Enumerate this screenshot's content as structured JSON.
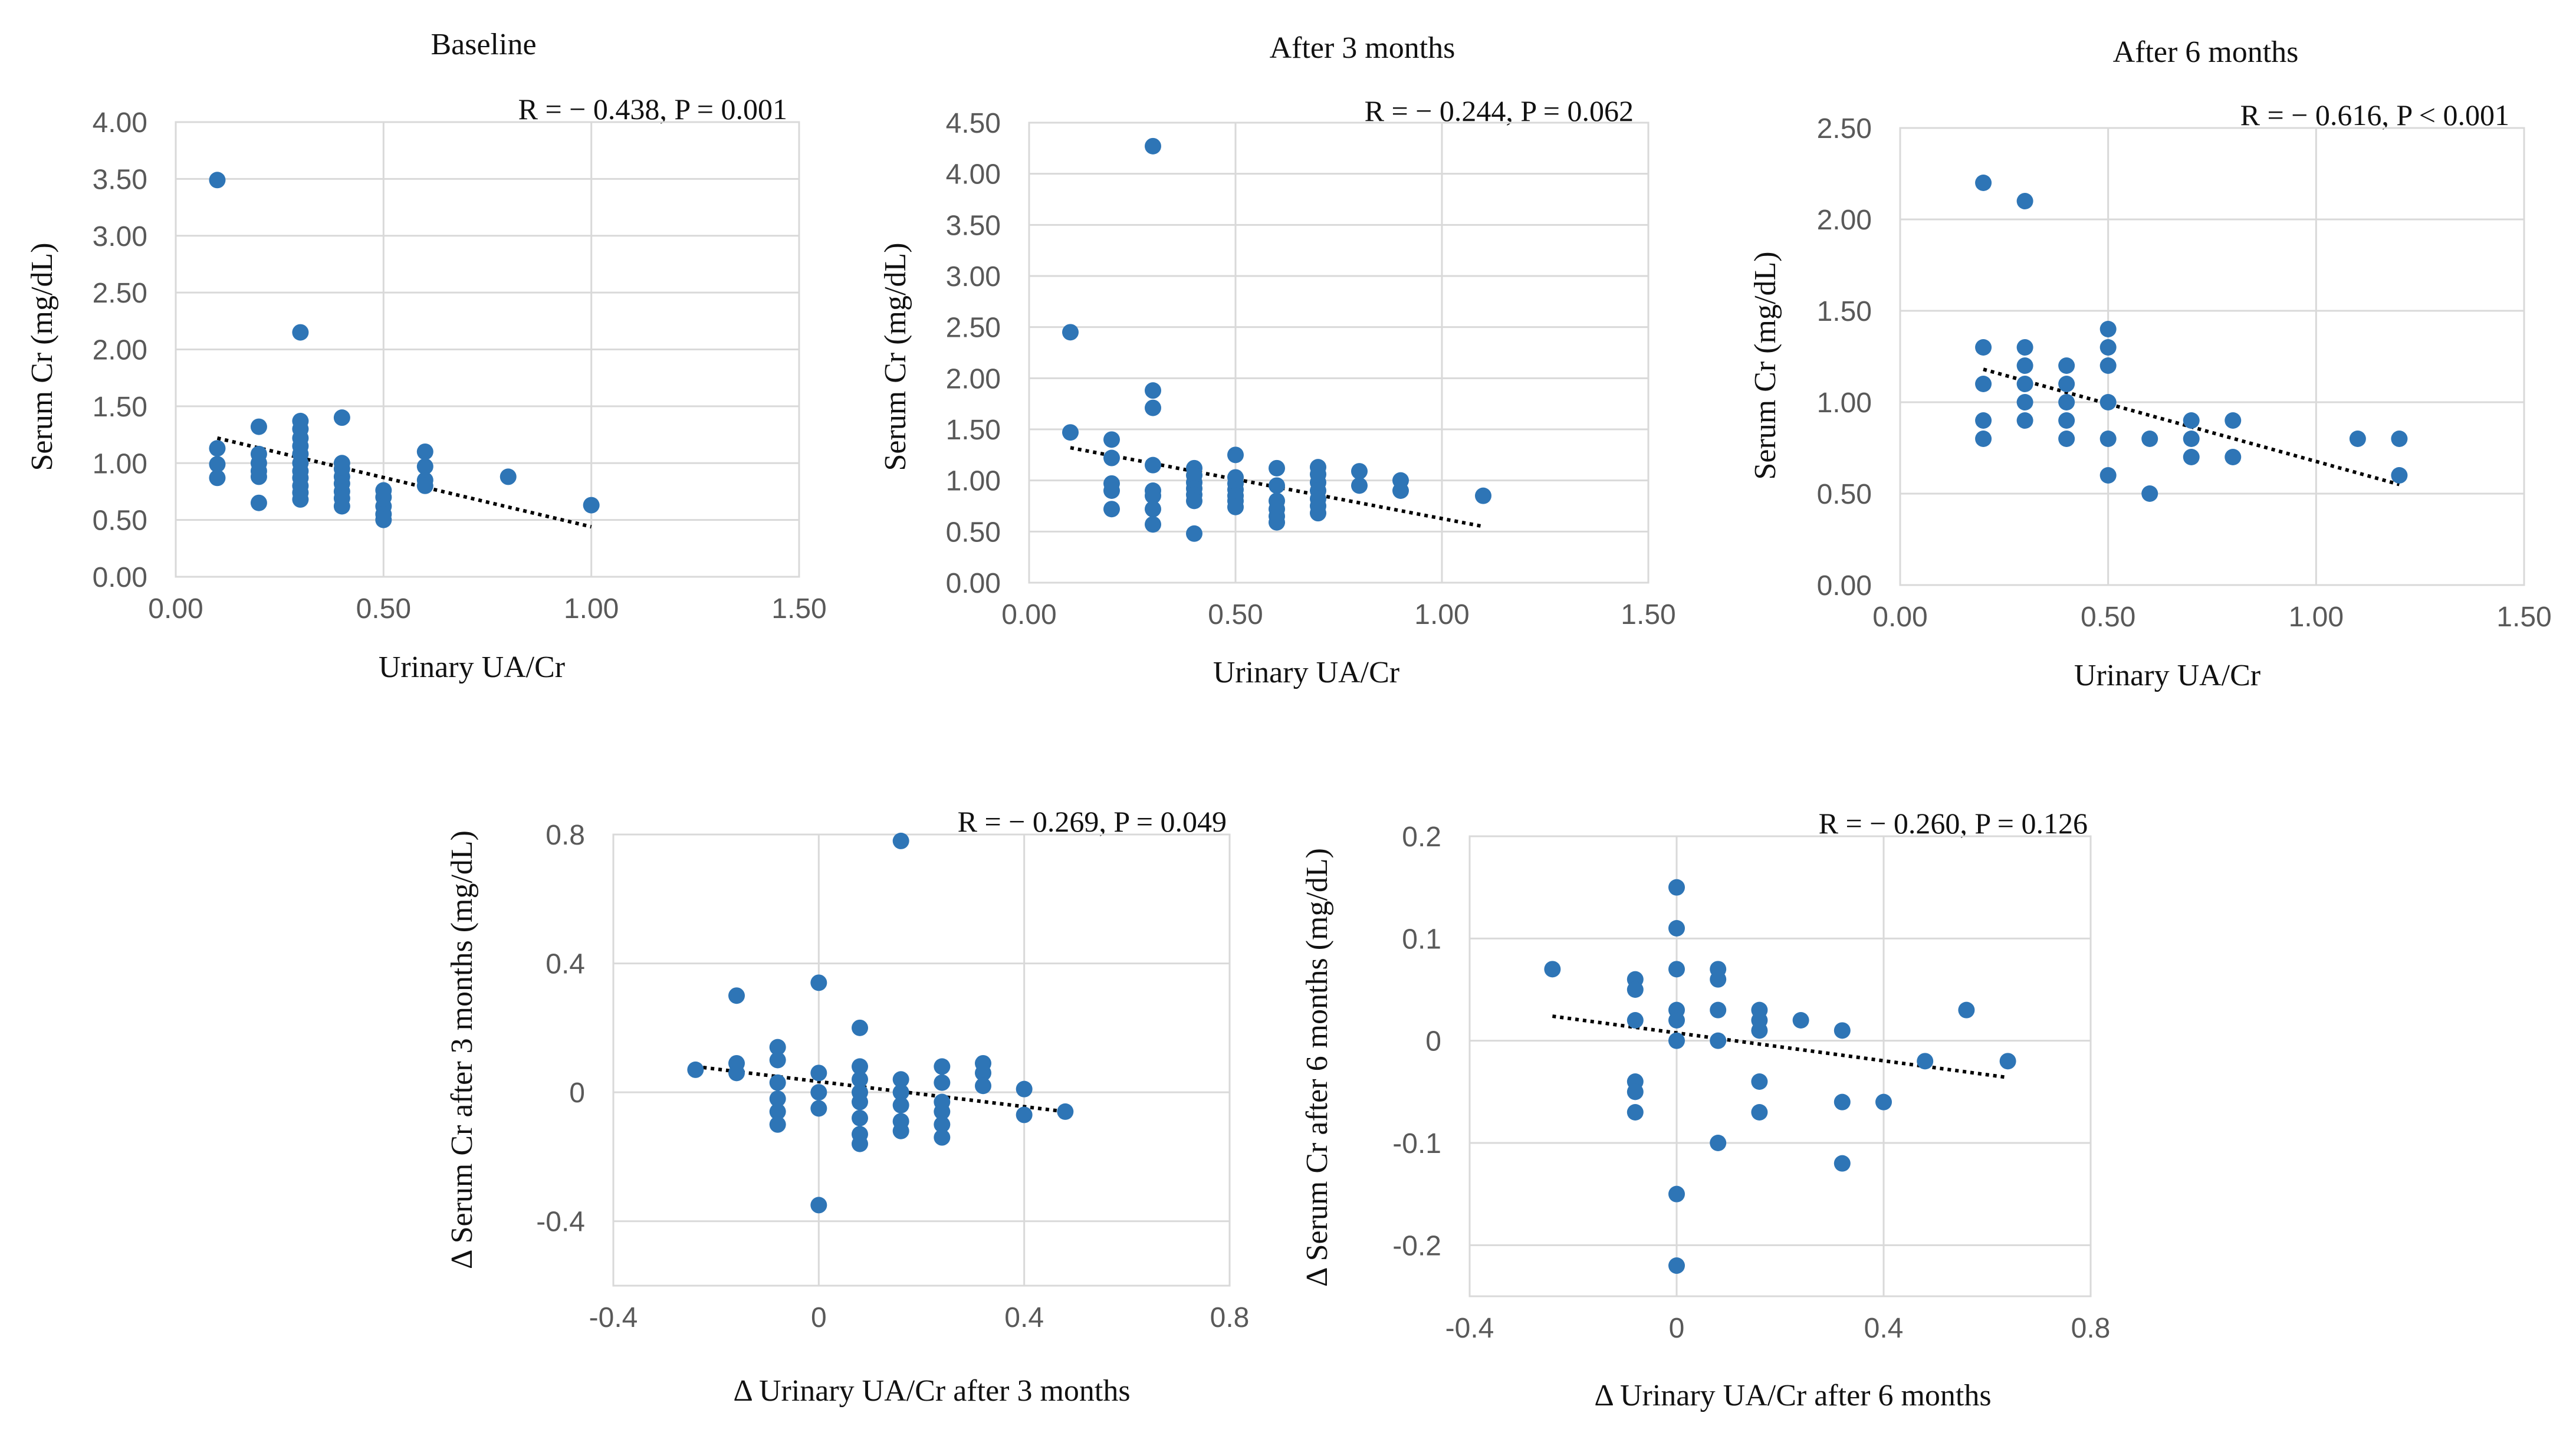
{
  "colors": {
    "point": "#2e75b6",
    "trendline": "#000000",
    "grid": "#d9d9d9",
    "tick_text": "#595959"
  },
  "chart_data": [
    {
      "type": "scatter",
      "title": "Baseline",
      "annotation": "R = − 0.438, P = 0.001",
      "xlabel": "Urinary UA/Cr",
      "ylabel": "Serum Cr (mg/dL)",
      "xlim": [
        0,
        1.5
      ],
      "ylim": [
        0,
        4.0
      ],
      "xticks": [
        0,
        0.5,
        1.0,
        1.5
      ],
      "xtick_labels": [
        "0.00",
        "0.50",
        "1.00",
        "1.50"
      ],
      "yticks": [
        0,
        0.5,
        1.0,
        1.5,
        2.0,
        2.5,
        3.0,
        3.5,
        4.0
      ],
      "ytick_labels": [
        "0.00",
        "0.50",
        "1.00",
        "1.50",
        "2.00",
        "2.50",
        "3.00",
        "3.50",
        "4.00"
      ],
      "grid": "vertical and horizontal",
      "trendline": {
        "x": [
          0.1,
          1.0
        ],
        "y": [
          1.22,
          0.44
        ]
      },
      "points": [
        [
          0.1,
          3.49
        ],
        [
          0.1,
          1.13
        ],
        [
          0.1,
          0.99
        ],
        [
          0.1,
          0.87
        ],
        [
          0.2,
          1.32
        ],
        [
          0.2,
          1.08
        ],
        [
          0.2,
          1.0
        ],
        [
          0.2,
          0.93
        ],
        [
          0.2,
          0.88
        ],
        [
          0.2,
          0.65
        ],
        [
          0.3,
          2.15
        ],
        [
          0.3,
          1.37
        ],
        [
          0.3,
          1.3
        ],
        [
          0.3,
          1.22
        ],
        [
          0.3,
          1.15
        ],
        [
          0.3,
          1.08
        ],
        [
          0.3,
          1.0
        ],
        [
          0.3,
          0.93
        ],
        [
          0.3,
          0.87
        ],
        [
          0.3,
          0.8
        ],
        [
          0.3,
          0.74
        ],
        [
          0.3,
          0.68
        ],
        [
          0.4,
          1.4
        ],
        [
          0.4,
          1.0
        ],
        [
          0.4,
          0.95
        ],
        [
          0.4,
          0.88
        ],
        [
          0.4,
          0.82
        ],
        [
          0.4,
          0.75
        ],
        [
          0.4,
          0.69
        ],
        [
          0.4,
          0.62
        ],
        [
          0.5,
          0.76
        ],
        [
          0.5,
          0.7
        ],
        [
          0.5,
          0.62
        ],
        [
          0.5,
          0.55
        ],
        [
          0.5,
          0.5
        ],
        [
          0.6,
          1.1
        ],
        [
          0.6,
          0.97
        ],
        [
          0.6,
          0.85
        ],
        [
          0.6,
          0.8
        ],
        [
          0.8,
          0.88
        ],
        [
          1.0,
          0.63
        ]
      ]
    },
    {
      "type": "scatter",
      "title": "After 3 months",
      "annotation": "R = − 0.244, P = 0.062",
      "xlabel": "Urinary UA/Cr",
      "ylabel": "Serum Cr (mg/dL)",
      "xlim": [
        0,
        1.5
      ],
      "ylim": [
        0,
        4.5
      ],
      "xticks": [
        0,
        0.5,
        1.0,
        1.5
      ],
      "xtick_labels": [
        "0.00",
        "0.50",
        "1.00",
        "1.50"
      ],
      "yticks": [
        0,
        0.5,
        1.0,
        1.5,
        2.0,
        2.5,
        3.0,
        3.5,
        4.0,
        4.5
      ],
      "ytick_labels": [
        "0.00",
        "0.50",
        "1.00",
        "1.50",
        "2.00",
        "2.50",
        "3.00",
        "3.50",
        "4.00",
        "4.50"
      ],
      "grid": "vertical and horizontal",
      "trendline": {
        "x": [
          0.1,
          1.1
        ],
        "y": [
          1.32,
          0.55
        ]
      },
      "points": [
        [
          0.1,
          2.45
        ],
        [
          0.1,
          1.47
        ],
        [
          0.2,
          1.4
        ],
        [
          0.2,
          1.22
        ],
        [
          0.2,
          0.97
        ],
        [
          0.2,
          0.9
        ],
        [
          0.2,
          0.72
        ],
        [
          0.3,
          4.27
        ],
        [
          0.3,
          1.88
        ],
        [
          0.3,
          1.71
        ],
        [
          0.3,
          1.15
        ],
        [
          0.3,
          0.9
        ],
        [
          0.3,
          0.85
        ],
        [
          0.3,
          0.72
        ],
        [
          0.3,
          0.57
        ],
        [
          0.4,
          1.12
        ],
        [
          0.4,
          1.05
        ],
        [
          0.4,
          0.98
        ],
        [
          0.4,
          0.92
        ],
        [
          0.4,
          0.86
        ],
        [
          0.4,
          0.8
        ],
        [
          0.4,
          0.48
        ],
        [
          0.5,
          1.25
        ],
        [
          0.5,
          1.03
        ],
        [
          0.5,
          0.97
        ],
        [
          0.5,
          0.91
        ],
        [
          0.5,
          0.85
        ],
        [
          0.5,
          0.8
        ],
        [
          0.5,
          0.74
        ],
        [
          0.6,
          1.12
        ],
        [
          0.6,
          0.95
        ],
        [
          0.6,
          0.8
        ],
        [
          0.6,
          0.72
        ],
        [
          0.6,
          0.65
        ],
        [
          0.6,
          0.59
        ],
        [
          0.7,
          1.13
        ],
        [
          0.7,
          1.06
        ],
        [
          0.7,
          0.98
        ],
        [
          0.7,
          0.9
        ],
        [
          0.7,
          0.82
        ],
        [
          0.7,
          0.75
        ],
        [
          0.7,
          0.68
        ],
        [
          0.8,
          1.09
        ],
        [
          0.8,
          0.95
        ],
        [
          0.9,
          1.0
        ],
        [
          0.9,
          0.9
        ],
        [
          1.1,
          0.85
        ]
      ]
    },
    {
      "type": "scatter",
      "title": "After 6 months",
      "annotation": "R = − 0.616, P < 0.001",
      "xlabel": "Urinary UA/Cr",
      "ylabel": "Serum Cr (mg/dL)",
      "xlim": [
        0,
        1.5
      ],
      "ylim": [
        0,
        2.5
      ],
      "xticks": [
        0,
        0.5,
        1.0,
        1.5
      ],
      "xtick_labels": [
        "0.00",
        "0.50",
        "1.00",
        "1.50"
      ],
      "yticks": [
        0,
        0.5,
        1.0,
        1.5,
        2.0,
        2.5
      ],
      "ytick_labels": [
        "0.00",
        "0.50",
        "1.00",
        "1.50",
        "2.00",
        "2.50"
      ],
      "grid": "vertical and horizontal",
      "trendline": {
        "x": [
          0.2,
          1.2
        ],
        "y": [
          1.18,
          0.55
        ]
      },
      "points": [
        [
          0.2,
          2.2
        ],
        [
          0.2,
          1.3
        ],
        [
          0.2,
          1.1
        ],
        [
          0.2,
          0.9
        ],
        [
          0.2,
          0.8
        ],
        [
          0.3,
          2.1
        ],
        [
          0.3,
          1.3
        ],
        [
          0.3,
          1.2
        ],
        [
          0.3,
          1.1
        ],
        [
          0.3,
          1.0
        ],
        [
          0.3,
          0.9
        ],
        [
          0.4,
          1.2
        ],
        [
          0.4,
          1.1
        ],
        [
          0.4,
          1.0
        ],
        [
          0.4,
          0.9
        ],
        [
          0.4,
          0.8
        ],
        [
          0.5,
          1.4
        ],
        [
          0.5,
          1.3
        ],
        [
          0.5,
          1.2
        ],
        [
          0.5,
          1.0
        ],
        [
          0.5,
          0.8
        ],
        [
          0.5,
          0.6
        ],
        [
          0.6,
          0.8
        ],
        [
          0.6,
          0.5
        ],
        [
          0.7,
          0.9
        ],
        [
          0.7,
          0.8
        ],
        [
          0.7,
          0.7
        ],
        [
          0.8,
          0.9
        ],
        [
          0.8,
          0.7
        ],
        [
          1.1,
          0.8
        ],
        [
          1.2,
          0.8
        ],
        [
          1.2,
          0.6
        ]
      ]
    },
    {
      "type": "scatter",
      "title": "",
      "annotation": "R = − 0.269, P = 0.049",
      "xlabel": "Δ Urinary UA/Cr after 3 months",
      "ylabel": "Δ Serum Cr after 3 months (mg/dL)",
      "xlim": [
        -0.4,
        0.8
      ],
      "ylim": [
        -0.6,
        0.8
      ],
      "xticks": [
        -0.4,
        0,
        0.4,
        0.8
      ],
      "xtick_labels": [
        "-0.4",
        "0",
        "0.4",
        "0.8"
      ],
      "yticks": [
        -0.4,
        0,
        0.4,
        0.8
      ],
      "ytick_labels": [
        "-0.4",
        "0",
        "0.4",
        "0.8"
      ],
      "grid": "vertical and horizontal",
      "trendline": {
        "x": [
          -0.24,
          0.48
        ],
        "y": [
          0.08,
          -0.06
        ]
      },
      "points": [
        [
          -0.24,
          0.07
        ],
        [
          -0.16,
          0.3
        ],
        [
          -0.16,
          0.09
        ],
        [
          -0.16,
          0.06
        ],
        [
          -0.08,
          0.14
        ],
        [
          -0.08,
          0.1
        ],
        [
          -0.08,
          0.03
        ],
        [
          -0.08,
          -0.02
        ],
        [
          -0.08,
          -0.06
        ],
        [
          -0.08,
          -0.1
        ],
        [
          0.0,
          0.34
        ],
        [
          0.0,
          0.06
        ],
        [
          0.0,
          0.0
        ],
        [
          0.0,
          -0.05
        ],
        [
          0.0,
          -0.35
        ],
        [
          0.08,
          0.2
        ],
        [
          0.08,
          0.08
        ],
        [
          0.08,
          0.04
        ],
        [
          0.08,
          0.0
        ],
        [
          0.08,
          -0.03
        ],
        [
          0.08,
          -0.08
        ],
        [
          0.08,
          -0.13
        ],
        [
          0.08,
          -0.16
        ],
        [
          0.16,
          0.78
        ],
        [
          0.16,
          0.04
        ],
        [
          0.16,
          0.0
        ],
        [
          0.16,
          -0.04
        ],
        [
          0.16,
          -0.09
        ],
        [
          0.16,
          -0.12
        ],
        [
          0.24,
          0.08
        ],
        [
          0.24,
          0.03
        ],
        [
          0.24,
          -0.03
        ],
        [
          0.24,
          -0.06
        ],
        [
          0.24,
          -0.1
        ],
        [
          0.24,
          -0.14
        ],
        [
          0.32,
          0.09
        ],
        [
          0.32,
          0.06
        ],
        [
          0.32,
          0.02
        ],
        [
          0.4,
          0.01
        ],
        [
          0.4,
          -0.07
        ],
        [
          0.48,
          -0.06
        ]
      ]
    },
    {
      "type": "scatter",
      "title": "",
      "annotation": "R = − 0.260, P = 0.126",
      "xlabel": "Δ Urinary UA/Cr after 6 months",
      "ylabel": "Δ Serum Cr after 6 months (mg/dL)",
      "xlim": [
        -0.4,
        0.8
      ],
      "ylim": [
        -0.25,
        0.2
      ],
      "xticks": [
        -0.4,
        0,
        0.4,
        0.8
      ],
      "xtick_labels": [
        "-0.4",
        "0",
        "0.4",
        "0.8"
      ],
      "yticks": [
        -0.2,
        -0.1,
        0,
        0.1,
        0.2
      ],
      "ytick_labels": [
        "-0.2",
        "-0.1",
        "0",
        "0.1",
        "0.2"
      ],
      "grid": "vertical and horizontal",
      "trendline": {
        "x": [
          -0.24,
          0.64
        ],
        "y": [
          0.024,
          -0.036
        ]
      },
      "points": [
        [
          -0.24,
          0.07
        ],
        [
          -0.08,
          0.06
        ],
        [
          -0.08,
          0.05
        ],
        [
          -0.08,
          0.02
        ],
        [
          -0.08,
          -0.04
        ],
        [
          -0.08,
          -0.05
        ],
        [
          -0.08,
          -0.07
        ],
        [
          0.0,
          0.15
        ],
        [
          0.0,
          0.11
        ],
        [
          0.0,
          0.07
        ],
        [
          0.0,
          0.03
        ],
        [
          0.0,
          0.02
        ],
        [
          0.0,
          0.0
        ],
        [
          0.0,
          -0.15
        ],
        [
          0.0,
          -0.22
        ],
        [
          0.08,
          0.07
        ],
        [
          0.08,
          0.06
        ],
        [
          0.08,
          0.03
        ],
        [
          0.08,
          0.0
        ],
        [
          0.08,
          -0.1
        ],
        [
          0.16,
          0.03
        ],
        [
          0.16,
          0.02
        ],
        [
          0.16,
          0.01
        ],
        [
          0.16,
          -0.04
        ],
        [
          0.16,
          -0.07
        ],
        [
          0.24,
          0.02
        ],
        [
          0.32,
          0.01
        ],
        [
          0.32,
          -0.06
        ],
        [
          0.32,
          -0.12
        ],
        [
          0.4,
          -0.06
        ],
        [
          0.48,
          -0.02
        ],
        [
          0.56,
          0.03
        ],
        [
          0.64,
          -0.02
        ]
      ]
    }
  ]
}
